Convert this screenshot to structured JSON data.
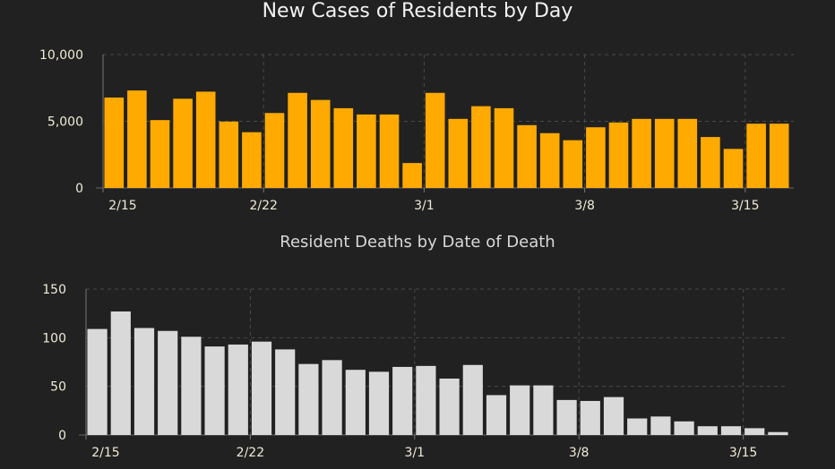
{
  "colors": {
    "background": "#212121",
    "cases_bar": "#FFAA00",
    "deaths_bar": "#D9D9D9",
    "grid": "#4a4a4a"
  },
  "chart_data": [
    {
      "type": "bar",
      "title": "New Cases of Residents by Day",
      "xlabel": "",
      "ylabel": "",
      "categories": [
        "2/15",
        "2/16",
        "2/17",
        "2/18",
        "2/19",
        "2/20",
        "2/21",
        "2/22",
        "2/23",
        "2/24",
        "2/25",
        "2/26",
        "2/27",
        "2/28",
        "3/1",
        "3/2",
        "3/3",
        "3/4",
        "3/5",
        "3/6",
        "3/7",
        "3/8",
        "3/9",
        "3/10",
        "3/11",
        "3/12",
        "3/13",
        "3/14",
        "3/15",
        "3/16"
      ],
      "values": [
        6780,
        7310,
        5090,
        6690,
        7220,
        4980,
        4180,
        5620,
        7130,
        6600,
        5980,
        5510,
        5510,
        1870,
        7130,
        5180,
        6130,
        5980,
        4710,
        4110,
        3580,
        4550,
        4910,
        5180,
        5180,
        5180,
        3820,
        2930,
        4820,
        4820
      ],
      "x_tick_labels": [
        "2/15",
        "2/22",
        "3/1",
        "3/8",
        "3/15"
      ],
      "y_tick_values": [
        0,
        5000,
        10000
      ],
      "y_tick_labels": [
        "0",
        "5,000",
        "10,000"
      ],
      "ylim": [
        0,
        10000
      ],
      "grid": true
    },
    {
      "type": "bar",
      "title": "Resident Deaths by Date of Death",
      "xlabel": "",
      "ylabel": "",
      "categories": [
        "2/15",
        "2/16",
        "2/17",
        "2/18",
        "2/19",
        "2/20",
        "2/21",
        "2/22",
        "2/23",
        "2/24",
        "2/25",
        "2/26",
        "2/27",
        "2/28",
        "3/1",
        "3/2",
        "3/3",
        "3/4",
        "3/5",
        "3/6",
        "3/7",
        "3/8",
        "3/9",
        "3/10",
        "3/11",
        "3/12",
        "3/13",
        "3/14",
        "3/15",
        "3/16"
      ],
      "values": [
        109,
        127,
        110,
        107,
        101,
        91,
        93,
        96,
        88,
        73,
        77,
        67,
        65,
        70,
        71,
        58,
        72,
        41,
        51,
        51,
        36,
        35,
        39,
        17,
        19,
        14,
        9,
        9,
        7,
        3
      ],
      "x_tick_labels": [
        "2/15",
        "2/22",
        "3/1",
        "3/8",
        "3/15"
      ],
      "y_tick_values": [
        0,
        50,
        100,
        150
      ],
      "y_tick_labels": [
        "0",
        "50",
        "100",
        "150"
      ],
      "ylim": [
        0,
        150
      ],
      "grid": true
    }
  ]
}
